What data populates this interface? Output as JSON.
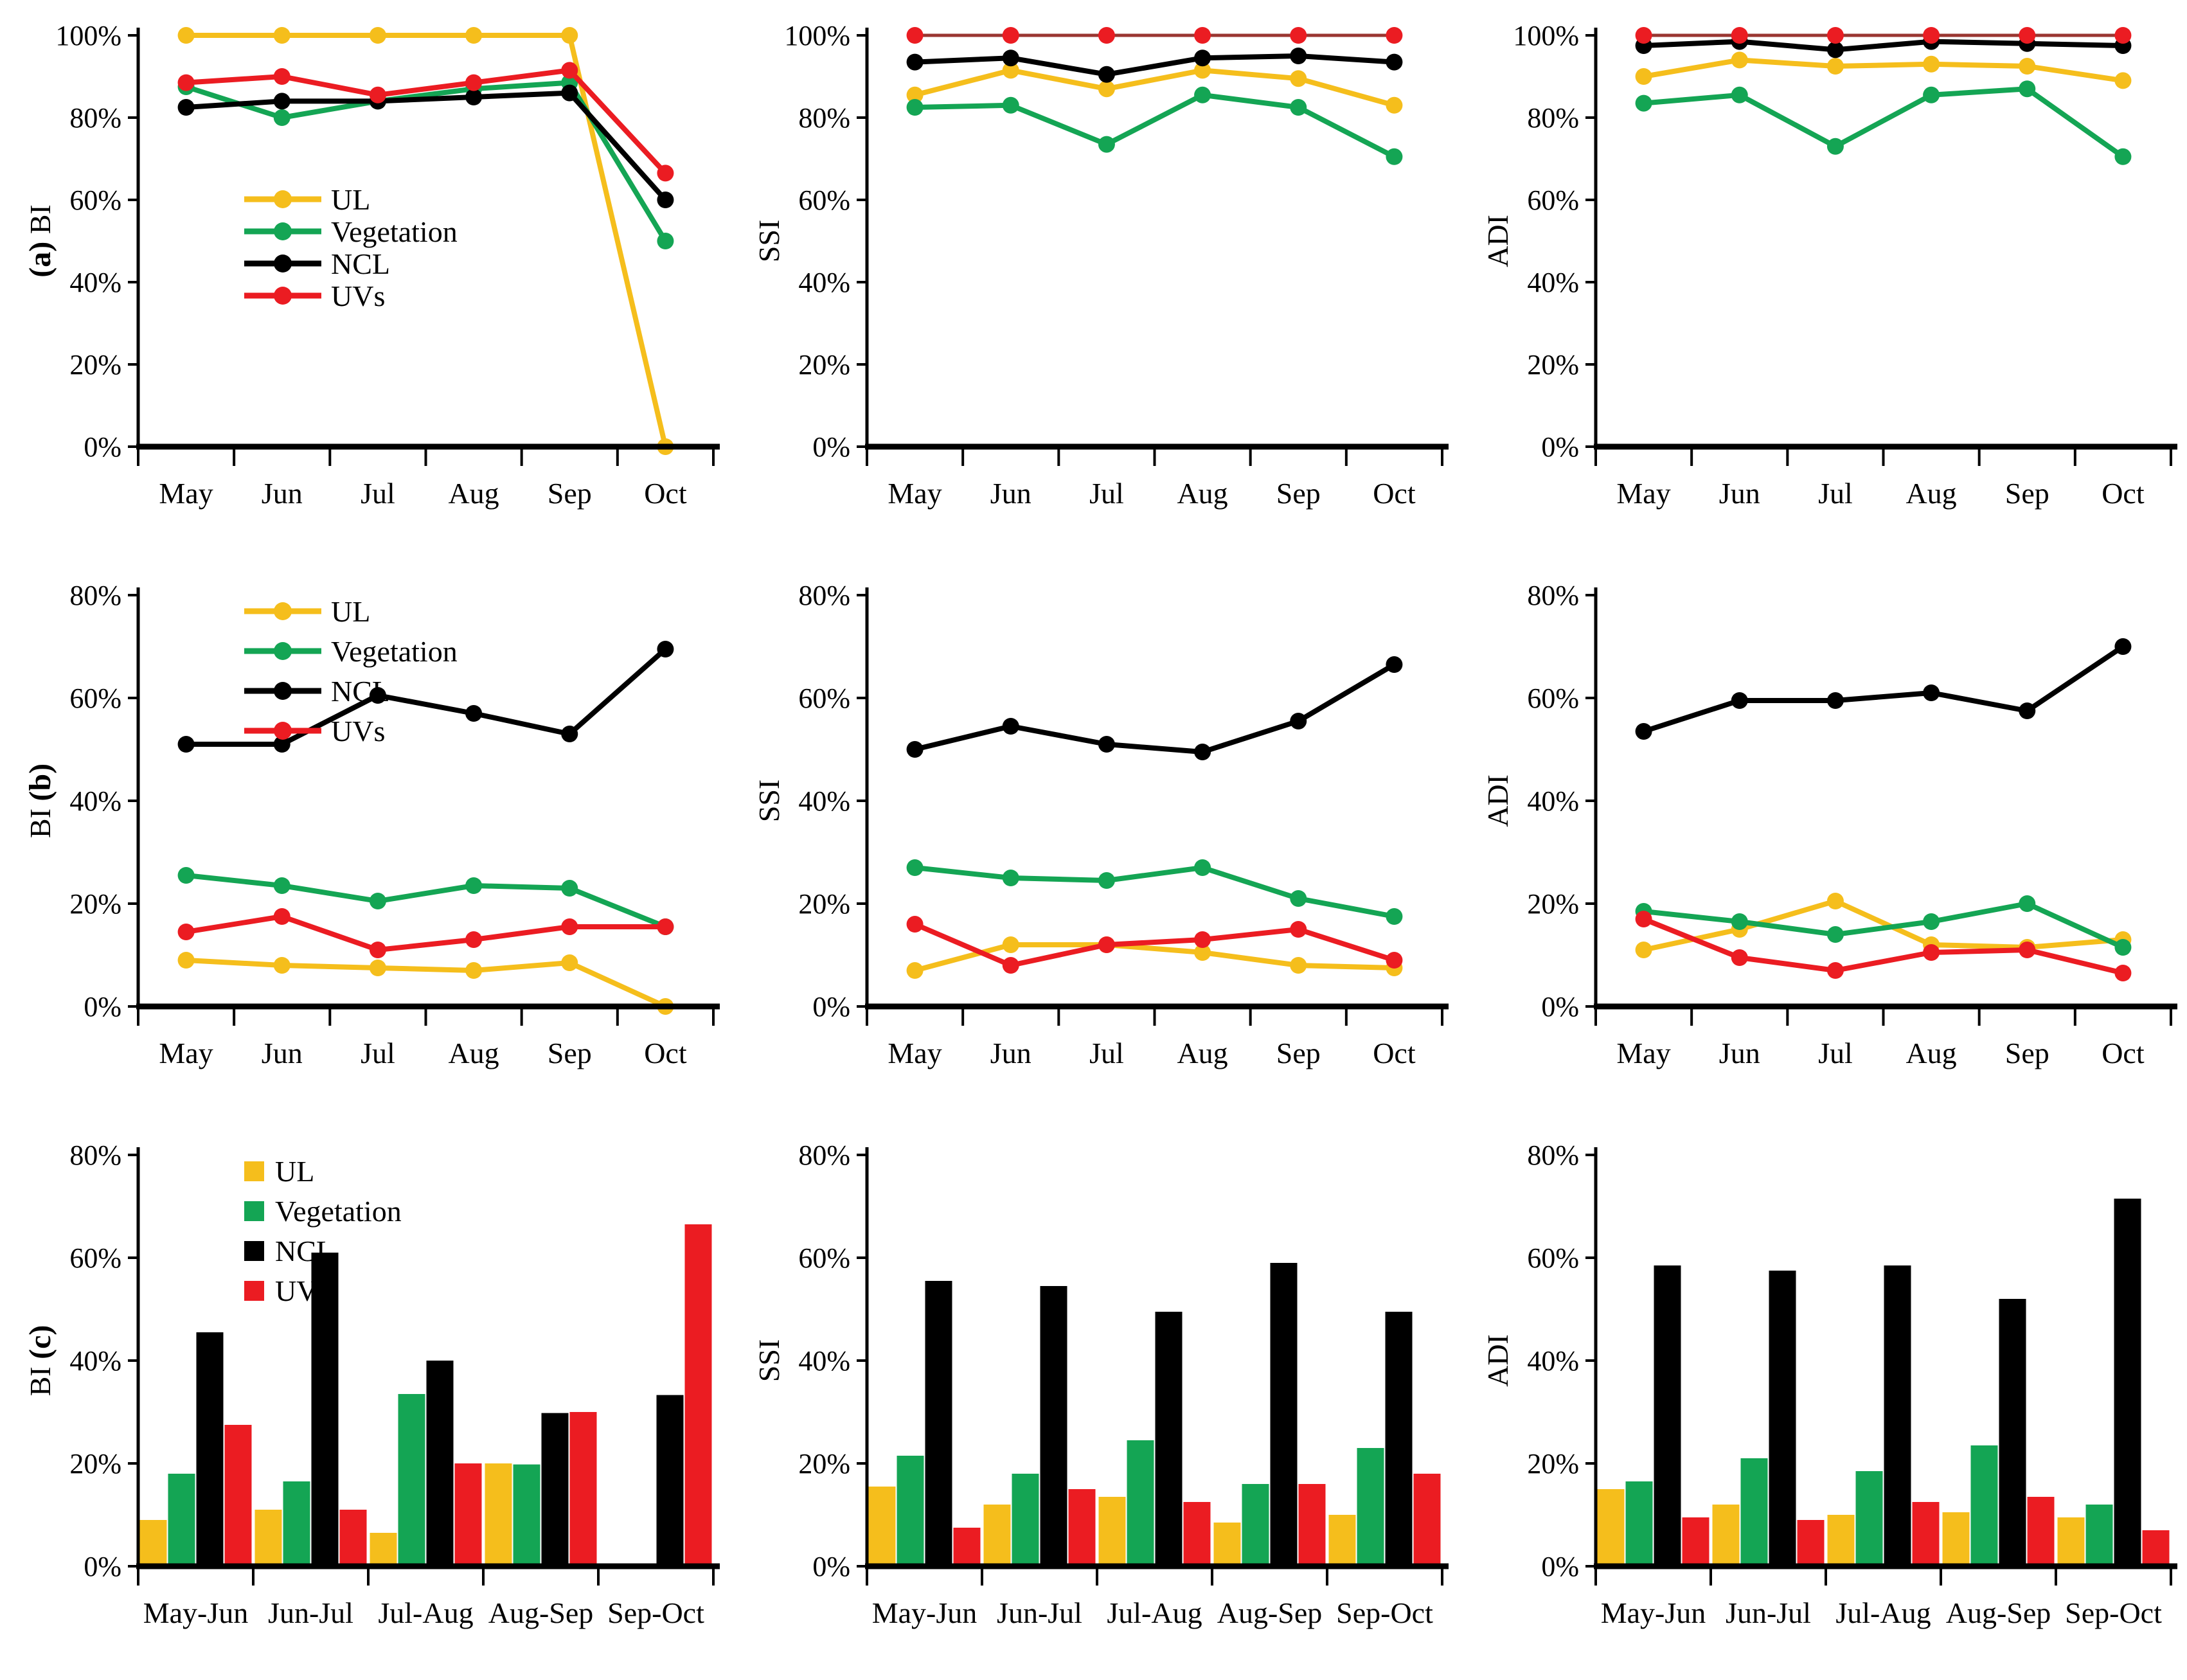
{
  "figure_title": "",
  "colors": {
    "UL": "#F5BE1C",
    "Vegetation": "#14A554",
    "NCL": "#000000",
    "UVs": "#EB1C22",
    "UVs_dark_line": "#9A3631",
    "axis": "#000000",
    "background": "#FFFFFF"
  },
  "legend_labels": [
    "UL",
    "Vegetation",
    "NCL",
    "UVs"
  ],
  "chart_data": [
    {
      "id": "a-BI",
      "type": "line",
      "panel": "(a)",
      "panel_order": "before",
      "ylabel": "BI",
      "xlabel": "",
      "categories": [
        "May",
        "Jun",
        "Jul",
        "Aug",
        "Sep",
        "Oct"
      ],
      "ylim": [
        0,
        100
      ],
      "ytick_labels": [
        "0%",
        "20%",
        "40%",
        "60%",
        "80%",
        "100%"
      ],
      "grid": false,
      "legend": {
        "show": true,
        "style": "line",
        "position": "middle-left"
      },
      "series": [
        {
          "name": "UL",
          "color_key": "UL",
          "values": [
            100,
            100,
            100,
            100,
            100,
            0
          ]
        },
        {
          "name": "Vegetation",
          "color_key": "Vegetation",
          "values": [
            87.5,
            80,
            84,
            87,
            88.5,
            50
          ]
        },
        {
          "name": "NCL",
          "color_key": "NCL",
          "values": [
            82.5,
            84,
            84,
            85,
            86,
            60
          ]
        },
        {
          "name": "UVs",
          "color_key": "UVs",
          "values": [
            88.5,
            90,
            85.5,
            88.5,
            91.5,
            66.5
          ]
        }
      ]
    },
    {
      "id": "a-SSI",
      "type": "line",
      "panel": "",
      "panel_order": "",
      "ylabel": "SSI",
      "xlabel": "",
      "categories": [
        "May",
        "Jun",
        "Jul",
        "Aug",
        "Sep",
        "Oct"
      ],
      "ylim": [
        0,
        100
      ],
      "ytick_labels": [
        "0%",
        "20%",
        "40%",
        "60%",
        "80%",
        "100%"
      ],
      "grid": false,
      "legend": {
        "show": false,
        "style": "line",
        "position": ""
      },
      "series": [
        {
          "name": "UL",
          "color_key": "UL",
          "values": [
            85.5,
            91.5,
            87,
            91.5,
            89.5,
            83
          ]
        },
        {
          "name": "Vegetation",
          "color_key": "Vegetation",
          "values": [
            82.5,
            83,
            73.5,
            85.5,
            82.5,
            70.5
          ]
        },
        {
          "name": "NCL",
          "color_key": "NCL",
          "values": [
            93.5,
            94.5,
            90.5,
            94.5,
            95,
            93.5
          ]
        },
        {
          "name": "UVs",
          "color_key": "UVs",
          "line_color_key": "UVs_dark_line",
          "line_width": 5,
          "values": [
            100,
            100,
            100,
            100,
            100,
            100
          ]
        }
      ]
    },
    {
      "id": "a-ADI",
      "type": "line",
      "panel": "",
      "panel_order": "",
      "ylabel": "ADI",
      "xlabel": "",
      "categories": [
        "May",
        "Jun",
        "Jul",
        "Aug",
        "Sep",
        "Oct"
      ],
      "ylim": [
        0,
        100
      ],
      "ytick_labels": [
        "0%",
        "20%",
        "40%",
        "60%",
        "80%",
        "100%"
      ],
      "grid": false,
      "legend": {
        "show": false,
        "style": "line",
        "position": ""
      },
      "series": [
        {
          "name": "UL",
          "color_key": "UL",
          "values": [
            90,
            94,
            92.5,
            93,
            92.5,
            89
          ]
        },
        {
          "name": "Vegetation",
          "color_key": "Vegetation",
          "values": [
            83.5,
            85.5,
            73,
            85.5,
            87,
            70.5
          ]
        },
        {
          "name": "NCL",
          "color_key": "NCL",
          "values": [
            97.5,
            98.5,
            96.5,
            98.5,
            98,
            97.5
          ]
        },
        {
          "name": "UVs",
          "color_key": "UVs",
          "line_color_key": "UVs_dark_line",
          "line_width": 5,
          "values": [
            100,
            100,
            100,
            100,
            100,
            100
          ]
        }
      ]
    },
    {
      "id": "b-BI",
      "type": "line",
      "panel": "(b)",
      "panel_order": "after",
      "ylabel": "BI",
      "xlabel": "",
      "categories": [
        "May",
        "Jun",
        "Jul",
        "Aug",
        "Sep",
        "Oct"
      ],
      "ylim": [
        0,
        80
      ],
      "ytick_labels": [
        "0%",
        "20%",
        "40%",
        "60%",
        "80%"
      ],
      "grid": false,
      "legend": {
        "show": true,
        "style": "line",
        "position": "upper-left"
      },
      "series": [
        {
          "name": "UL",
          "color_key": "UL",
          "values": [
            9,
            8,
            7.5,
            7,
            8.5,
            0
          ]
        },
        {
          "name": "Vegetation",
          "color_key": "Vegetation",
          "values": [
            25.5,
            23.5,
            20.5,
            23.5,
            23,
            15.5
          ]
        },
        {
          "name": "NCL",
          "color_key": "NCL",
          "values": [
            51,
            51,
            60.5,
            57,
            53,
            69.5
          ]
        },
        {
          "name": "UVs",
          "color_key": "UVs",
          "values": [
            14.5,
            17.5,
            11,
            13,
            15.5,
            15.5
          ]
        }
      ]
    },
    {
      "id": "b-SSI",
      "type": "line",
      "panel": "",
      "panel_order": "",
      "ylabel": "SSI",
      "xlabel": "",
      "categories": [
        "May",
        "Jun",
        "Jul",
        "Aug",
        "Sep",
        "Oct"
      ],
      "ylim": [
        0,
        80
      ],
      "ytick_labels": [
        "0%",
        "20%",
        "40%",
        "60%",
        "80%"
      ],
      "grid": false,
      "legend": {
        "show": false,
        "style": "line",
        "position": ""
      },
      "series": [
        {
          "name": "UL",
          "color_key": "UL",
          "values": [
            7,
            12,
            12,
            10.5,
            8,
            7.5
          ]
        },
        {
          "name": "Vegetation",
          "color_key": "Vegetation",
          "values": [
            27,
            25,
            24.5,
            27,
            21,
            17.5
          ]
        },
        {
          "name": "NCL",
          "color_key": "NCL",
          "values": [
            50,
            54.5,
            51,
            49.5,
            55.5,
            66.5
          ]
        },
        {
          "name": "UVs",
          "color_key": "UVs",
          "values": [
            16,
            8,
            12,
            13,
            15,
            9
          ]
        }
      ]
    },
    {
      "id": "b-ADI",
      "type": "line",
      "panel": "",
      "panel_order": "",
      "ylabel": "ADI",
      "xlabel": "",
      "categories": [
        "May",
        "Jun",
        "Jul",
        "Aug",
        "Sep",
        "Oct"
      ],
      "ylim": [
        0,
        80
      ],
      "ytick_labels": [
        "0%",
        "20%",
        "40%",
        "60%",
        "80%"
      ],
      "grid": false,
      "legend": {
        "show": false,
        "style": "line",
        "position": ""
      },
      "series": [
        {
          "name": "UL",
          "color_key": "UL",
          "values": [
            11,
            15,
            20.5,
            12,
            11.5,
            13
          ]
        },
        {
          "name": "Vegetation",
          "color_key": "Vegetation",
          "values": [
            18.5,
            16.5,
            14,
            16.5,
            20,
            11.5
          ]
        },
        {
          "name": "NCL",
          "color_key": "NCL",
          "values": [
            53.5,
            59.5,
            59.5,
            61,
            57.5,
            70
          ]
        },
        {
          "name": "UVs",
          "color_key": "UVs",
          "values": [
            17,
            9.5,
            7,
            10.5,
            11,
            6.5
          ]
        }
      ]
    },
    {
      "id": "c-BI",
      "type": "bar",
      "panel": "(c)",
      "panel_order": "after",
      "ylabel": "BI",
      "xlabel": "",
      "categories": [
        "May-Jun",
        "Jun-Jul",
        "Jul-Aug",
        "Aug-Sep",
        "Sep-Oct"
      ],
      "ylim": [
        0,
        80
      ],
      "ytick_labels": [
        "0%",
        "20%",
        "40%",
        "60%",
        "80%"
      ],
      "grid": false,
      "legend": {
        "show": true,
        "style": "square",
        "position": "upper-left"
      },
      "series": [
        {
          "name": "UL",
          "color_key": "UL",
          "values": [
            9,
            11,
            6.5,
            20,
            0
          ]
        },
        {
          "name": "Vegetation",
          "color_key": "Vegetation",
          "values": [
            18,
            16.5,
            33.5,
            19.8,
            0
          ]
        },
        {
          "name": "NCL",
          "color_key": "NCL",
          "values": [
            45.5,
            61,
            40,
            29.8,
            33.3
          ]
        },
        {
          "name": "UVs",
          "color_key": "UVs",
          "values": [
            27.5,
            11,
            20,
            30,
            66.5
          ]
        }
      ]
    },
    {
      "id": "c-SSI",
      "type": "bar",
      "panel": "",
      "panel_order": "",
      "ylabel": "SSI",
      "xlabel": "",
      "categories": [
        "May-Jun",
        "Jun-Jul",
        "Jul-Aug",
        "Aug-Sep",
        "Sep-Oct"
      ],
      "ylim": [
        0,
        80
      ],
      "ytick_labels": [
        "0%",
        "20%",
        "40%",
        "60%",
        "80%"
      ],
      "grid": false,
      "legend": {
        "show": false,
        "style": "square",
        "position": ""
      },
      "series": [
        {
          "name": "UL",
          "color_key": "UL",
          "values": [
            15.5,
            12,
            13.5,
            8.5,
            10
          ]
        },
        {
          "name": "Vegetation",
          "color_key": "Vegetation",
          "values": [
            21.5,
            18,
            24.5,
            16,
            23
          ]
        },
        {
          "name": "NCL",
          "color_key": "NCL",
          "values": [
            55.5,
            54.5,
            49.5,
            59,
            49.5
          ]
        },
        {
          "name": "UVs",
          "color_key": "UVs",
          "values": [
            7.5,
            15,
            12.5,
            16,
            18
          ]
        }
      ]
    },
    {
      "id": "c-ADI",
      "type": "bar",
      "panel": "",
      "panel_order": "",
      "ylabel": "ADI",
      "xlabel": "",
      "categories": [
        "May-Jun",
        "Jun-Jul",
        "Jul-Aug",
        "Aug-Sep",
        "Sep-Oct"
      ],
      "ylim": [
        0,
        80
      ],
      "ytick_labels": [
        "0%",
        "20%",
        "40%",
        "60%",
        "80%"
      ],
      "grid": false,
      "legend": {
        "show": false,
        "style": "square",
        "position": ""
      },
      "series": [
        {
          "name": "UL",
          "color_key": "UL",
          "values": [
            15,
            12,
            10,
            10.5,
            9.5
          ]
        },
        {
          "name": "Vegetation",
          "color_key": "Vegetation",
          "values": [
            16.5,
            21,
            18.5,
            23.5,
            12
          ]
        },
        {
          "name": "NCL",
          "color_key": "NCL",
          "values": [
            58.5,
            57.5,
            58.5,
            52,
            71.5
          ]
        },
        {
          "name": "UVs",
          "color_key": "UVs",
          "values": [
            9.5,
            9,
            12.5,
            13.5,
            7
          ]
        }
      ]
    }
  ]
}
